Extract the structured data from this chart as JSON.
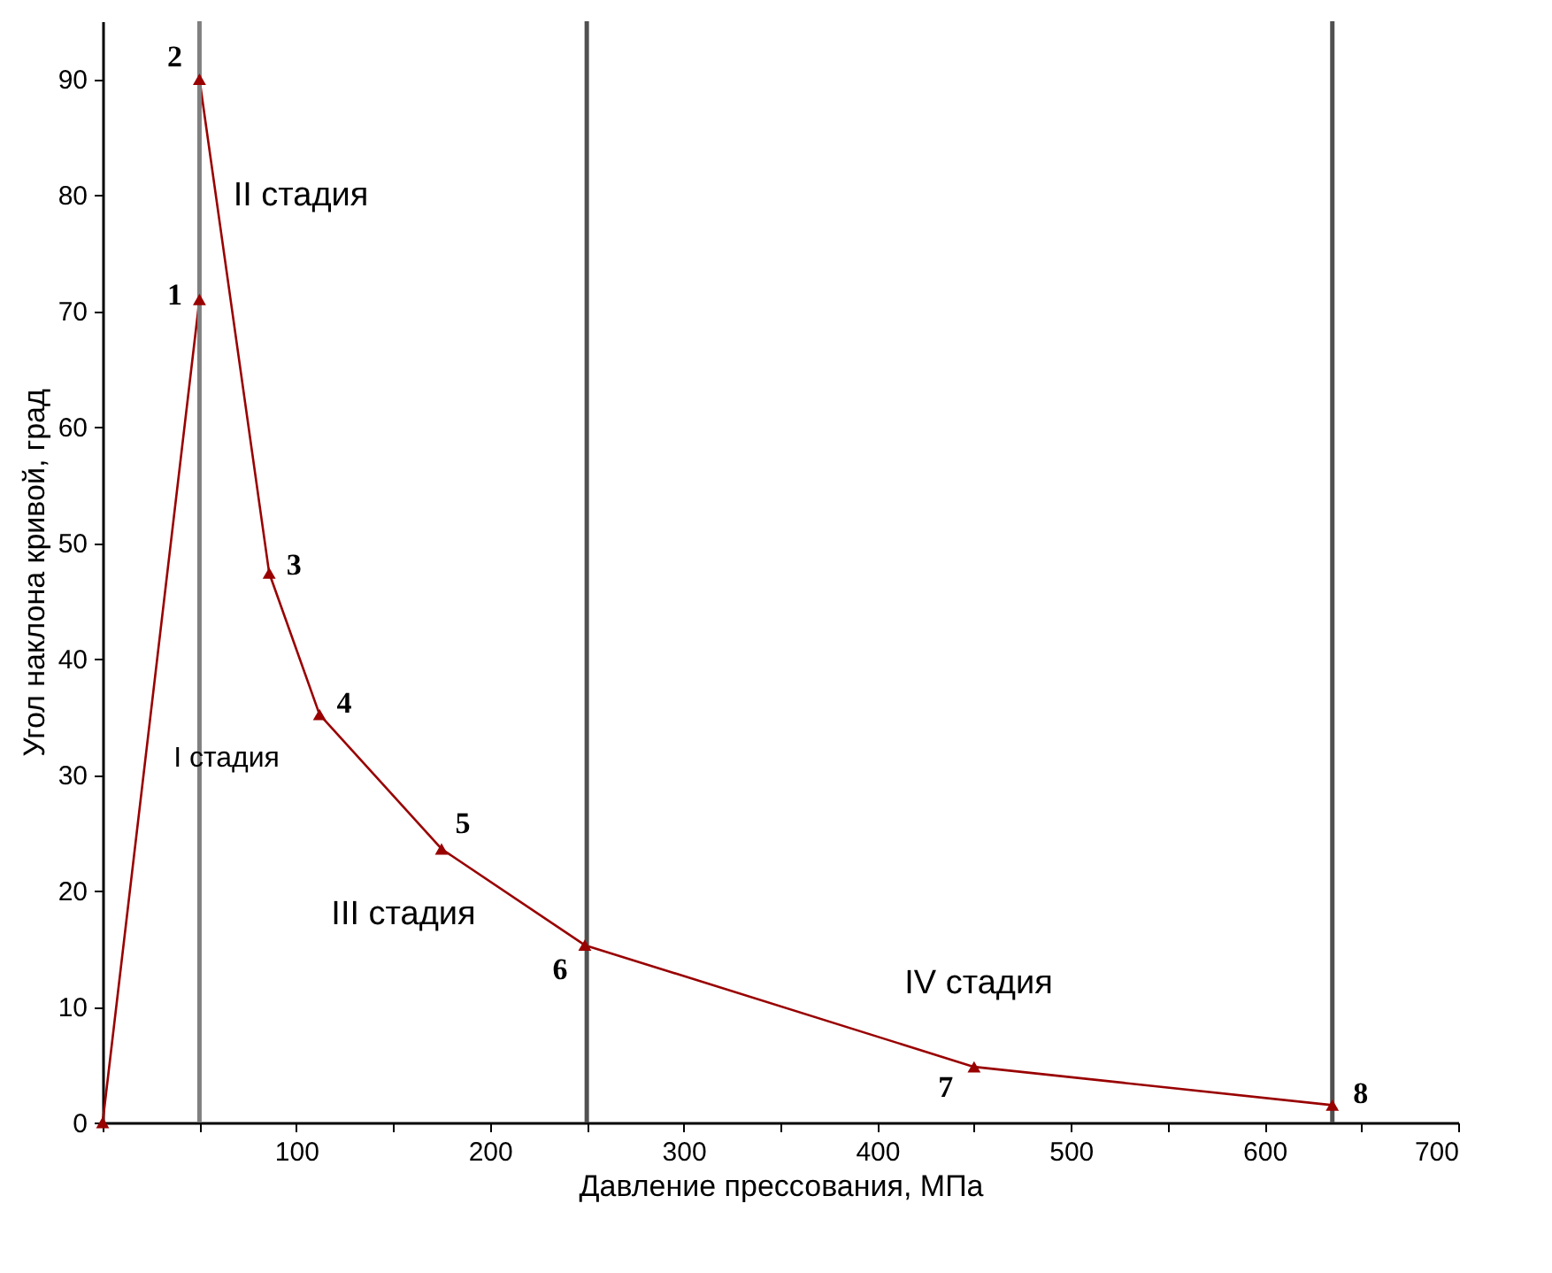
{
  "chart_data": {
    "type": "line",
    "xlabel": "Давление прессования, МПа",
    "ylabel": "Угол наклона кривой, град",
    "x": [
      0,
      50,
      50,
      86,
      112,
      175,
      249,
      450,
      635
    ],
    "series": [
      {
        "color": "#990000",
        "values": [
          0,
          71,
          90,
          47.4,
          35.2,
          23.6,
          15.3,
          4.8,
          1.5
        ]
      }
    ],
    "marker": "triangle",
    "line_style": "solid",
    "grid": false,
    "xlim": [
      0,
      700
    ],
    "ylim": [
      0,
      95
    ],
    "xticks": [
      {
        "value": 0,
        "label": null
      },
      {
        "value": 50,
        "label": null
      },
      100,
      {
        "value": 150,
        "label": null
      },
      200,
      {
        "value": 250,
        "label": null
      },
      300,
      {
        "value": 350,
        "label": null
      },
      400,
      {
        "value": 450,
        "label": null
      },
      500,
      {
        "value": 550,
        "label": null
      },
      600,
      {
        "value": 650,
        "label": null
      },
      700
    ],
    "yticks": [
      0,
      10,
      20,
      30,
      40,
      50,
      60,
      70,
      80,
      90
    ],
    "ref_lines": [
      {
        "axis": "x",
        "value": 50,
        "color": "#808080"
      },
      {
        "axis": "x",
        "value": 250,
        "color": "#505050"
      },
      {
        "axis": "x",
        "value": 635,
        "color": "#505050"
      }
    ],
    "annotations": [
      {
        "text": "1",
        "x": 50,
        "y": 71
      },
      {
        "text": "2",
        "x": 50,
        "y": 90
      },
      {
        "text": "3",
        "x": 86,
        "y": 47.4
      },
      {
        "text": "4",
        "x": 112,
        "y": 35.2
      },
      {
        "text": "5",
        "x": 175,
        "y": 23.6
      },
      {
        "text": "6",
        "x": 249,
        "y": 15.3
      },
      {
        "text": "7",
        "x": 450,
        "y": 4.8
      },
      {
        "text": "8",
        "x": 635,
        "y": 1.5
      },
      "I стадия",
      "II стадия",
      "III стадия",
      "IV стадия"
    ]
  }
}
